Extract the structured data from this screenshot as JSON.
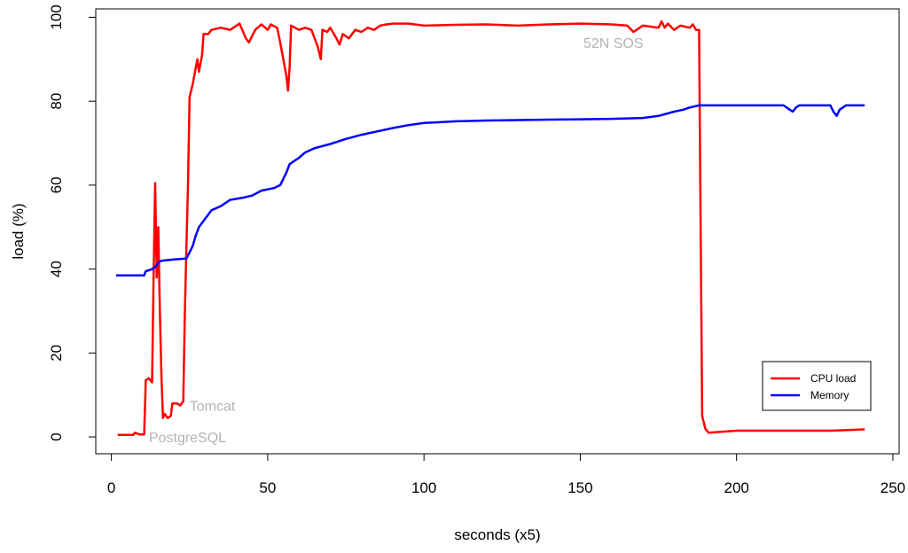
{
  "chart_data": {
    "type": "line",
    "title": "",
    "xlabel": "seconds (x5)",
    "ylabel": "load (%)",
    "xlim": [
      -5,
      252
    ],
    "ylim": [
      -4,
      102
    ],
    "xticks": [
      0,
      50,
      100,
      150,
      200,
      250
    ],
    "yticks": [
      0,
      20,
      40,
      60,
      80,
      100
    ],
    "grid": false,
    "legend": {
      "position": "bottom-right"
    },
    "colors": {
      "cpu": "#ff0000",
      "memory": "#0000ff",
      "annotation": "#b3b3b3"
    },
    "series": [
      {
        "name": "CPU load",
        "color": "#ff0000",
        "points": [
          [
            2,
            0.5
          ],
          [
            7,
            0.5
          ],
          [
            7.5,
            1
          ],
          [
            9,
            0.6
          ],
          [
            10.5,
            0.6
          ],
          [
            11,
            13.5
          ],
          [
            12,
            14
          ],
          [
            13,
            13
          ],
          [
            13.5,
            38
          ],
          [
            14,
            60.5
          ],
          [
            14.5,
            38
          ],
          [
            15,
            50
          ],
          [
            15.5,
            30
          ],
          [
            16,
            15
          ],
          [
            16.5,
            4.5
          ],
          [
            17,
            5.5
          ],
          [
            18,
            4.5
          ],
          [
            19,
            5
          ],
          [
            19.5,
            8
          ],
          [
            21,
            8
          ],
          [
            22,
            7.5
          ],
          [
            23,
            8.5
          ],
          [
            23.5,
            30
          ],
          [
            24,
            45
          ],
          [
            24.5,
            60
          ],
          [
            25,
            81
          ],
          [
            26,
            84
          ],
          [
            27,
            88
          ],
          [
            27.5,
            90
          ],
          [
            28,
            87
          ],
          [
            29,
            91
          ],
          [
            29.5,
            96
          ],
          [
            31,
            96
          ],
          [
            32,
            97
          ],
          [
            35,
            97.5
          ],
          [
            38,
            97
          ],
          [
            41,
            98.5
          ],
          [
            43,
            95
          ],
          [
            44,
            94
          ],
          [
            46,
            97
          ],
          [
            48,
            98.3
          ],
          [
            50,
            97
          ],
          [
            51,
            98.3
          ],
          [
            53,
            97.5
          ],
          [
            54,
            94
          ],
          [
            55,
            90
          ],
          [
            56,
            86
          ],
          [
            56.5,
            82.5
          ],
          [
            57,
            88
          ],
          [
            57.5,
            98
          ],
          [
            60,
            97
          ],
          [
            62,
            97.5
          ],
          [
            64,
            97
          ],
          [
            65,
            95
          ],
          [
            66,
            93
          ],
          [
            67,
            90
          ],
          [
            67.5,
            97
          ],
          [
            69,
            96.5
          ],
          [
            70,
            97.5
          ],
          [
            72,
            95
          ],
          [
            73,
            93.5
          ],
          [
            74,
            96
          ],
          [
            76,
            95
          ],
          [
            78,
            97
          ],
          [
            80,
            96.5
          ],
          [
            82,
            97.5
          ],
          [
            84,
            97
          ],
          [
            86,
            98
          ],
          [
            88,
            98.3
          ],
          [
            90,
            98.5
          ],
          [
            95,
            98.5
          ],
          [
            100,
            98
          ],
          [
            110,
            98.2
          ],
          [
            120,
            98.3
          ],
          [
            130,
            98
          ],
          [
            140,
            98.3
          ],
          [
            150,
            98.5
          ],
          [
            160,
            98.3
          ],
          [
            165,
            98
          ],
          [
            167,
            96.5
          ],
          [
            168,
            97
          ],
          [
            170,
            98
          ],
          [
            175,
            97.5
          ],
          [
            176,
            99
          ],
          [
            177,
            97.5
          ],
          [
            178,
            98.5
          ],
          [
            180,
            97
          ],
          [
            182,
            98
          ],
          [
            185,
            97.5
          ],
          [
            186,
            98.3
          ],
          [
            187,
            97
          ],
          [
            188,
            97
          ],
          [
            188.5,
            51
          ],
          [
            189,
            5
          ],
          [
            190,
            2
          ],
          [
            191,
            1
          ],
          [
            200,
            1.5
          ],
          [
            210,
            1.5
          ],
          [
            220,
            1.5
          ],
          [
            230,
            1.5
          ],
          [
            241,
            1.8
          ]
        ]
      },
      {
        "name": "Memory",
        "color": "#0000ff",
        "points": [
          [
            1.5,
            38.5
          ],
          [
            10.5,
            38.5
          ],
          [
            11,
            39.5
          ],
          [
            12,
            39.7
          ],
          [
            13,
            40
          ],
          [
            14,
            40.5
          ],
          [
            15,
            41.5
          ],
          [
            16,
            42
          ],
          [
            20,
            42.3
          ],
          [
            24,
            42.5
          ],
          [
            25,
            44
          ],
          [
            26,
            45.5
          ],
          [
            27,
            48
          ],
          [
            28,
            50
          ],
          [
            29,
            51
          ],
          [
            30,
            52
          ],
          [
            31,
            53
          ],
          [
            32,
            54
          ],
          [
            35,
            55
          ],
          [
            38,
            56.5
          ],
          [
            42,
            57
          ],
          [
            45,
            57.5
          ],
          [
            48,
            58.7
          ],
          [
            52,
            59.3
          ],
          [
            54,
            60
          ],
          [
            55,
            61.5
          ],
          [
            56,
            63
          ],
          [
            57,
            65
          ],
          [
            60,
            66.5
          ],
          [
            62,
            67.8
          ],
          [
            65,
            68.8
          ],
          [
            70,
            69.8
          ],
          [
            75,
            71
          ],
          [
            80,
            72
          ],
          [
            85,
            72.8
          ],
          [
            90,
            73.6
          ],
          [
            95,
            74.3
          ],
          [
            100,
            74.8
          ],
          [
            105,
            75
          ],
          [
            110,
            75.2
          ],
          [
            120,
            75.4
          ],
          [
            130,
            75.5
          ],
          [
            140,
            75.6
          ],
          [
            150,
            75.7
          ],
          [
            160,
            75.8
          ],
          [
            170,
            76
          ],
          [
            175,
            76.5
          ],
          [
            180,
            77.5
          ],
          [
            183,
            78
          ],
          [
            185,
            78.5
          ],
          [
            188,
            79
          ],
          [
            200,
            79
          ],
          [
            215,
            79
          ],
          [
            217,
            78
          ],
          [
            218,
            77.5
          ],
          [
            219,
            78.5
          ],
          [
            220,
            79
          ],
          [
            230,
            79
          ],
          [
            231,
            77.5
          ],
          [
            232,
            76.5
          ],
          [
            233,
            78
          ],
          [
            235,
            79
          ],
          [
            241,
            79
          ]
        ]
      }
    ],
    "annotations": [
      {
        "text": "PostgreSQL",
        "x": 12,
        "y": 0
      },
      {
        "text": "Tomcat",
        "x": 25,
        "y": 7.5
      },
      {
        "text": "52N SOS",
        "x": 151,
        "y": 94
      }
    ]
  }
}
